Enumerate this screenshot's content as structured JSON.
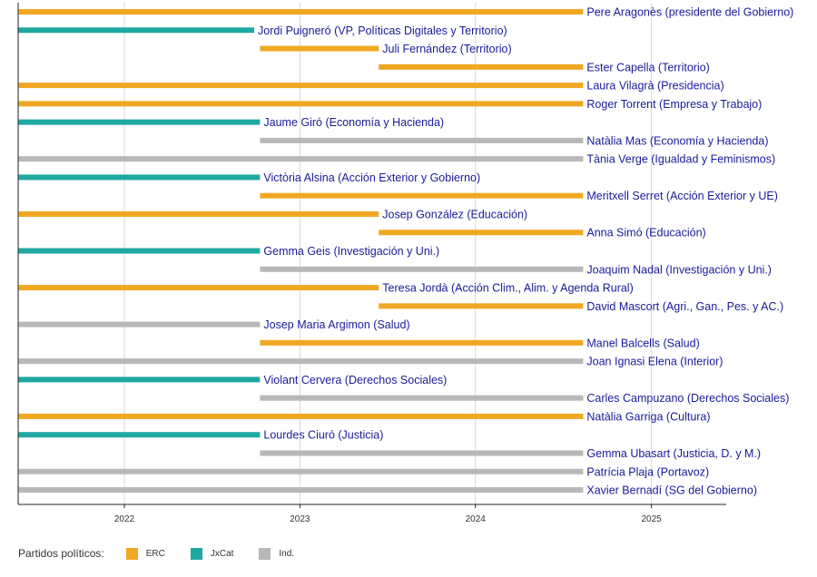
{
  "chart_data": {
    "type": "bar",
    "orientation": "horizontal-timeline",
    "x_ticks": [
      "2022",
      "2023",
      "2024",
      "2025"
    ],
    "xlim": [
      "2021-05-26",
      "2025-08-01"
    ],
    "grid": true,
    "legend_position": "bottom-left",
    "legend": {
      "title": "Partidos políticos:",
      "entries": [
        {
          "key": "ERC",
          "label": "ERC",
          "color": "#f0a824"
        },
        {
          "key": "JxCat",
          "label": "JxCat",
          "color": "#1fa8a1"
        },
        {
          "key": "Ind",
          "label": "Ind.",
          "color": "#b8b8b8"
        }
      ]
    },
    "bars": [
      {
        "label": "Pere Aragonès (presidente del Gobierno)",
        "party": "ERC",
        "start": "2021-05-26",
        "end": "2024-08-12"
      },
      {
        "label": "Jordi Puigneró (VP, Políticas Digitales y Territorio)",
        "party": "JxCat",
        "start": "2021-05-26",
        "end": "2022-09-28"
      },
      {
        "label": "Juli Fernández (Territorio)",
        "party": "ERC",
        "start": "2022-10-10",
        "end": "2023-06-14"
      },
      {
        "label": "Ester Capella (Territorio)",
        "party": "ERC",
        "start": "2023-06-14",
        "end": "2024-08-12"
      },
      {
        "label": "Laura Vilagrà (Presidencia)",
        "party": "ERC",
        "start": "2021-05-26",
        "end": "2024-08-12"
      },
      {
        "label": "Roger Torrent (Empresa y Trabajo)",
        "party": "ERC",
        "start": "2021-05-26",
        "end": "2024-08-12"
      },
      {
        "label": "Jaume Giró (Economía y Hacienda)",
        "party": "JxCat",
        "start": "2021-05-26",
        "end": "2022-10-10"
      },
      {
        "label": "Natàlia Mas (Economía y Hacienda)",
        "party": "Ind",
        "start": "2022-10-10",
        "end": "2024-08-12"
      },
      {
        "label": "Tània Verge (Igualdad y Feminismos)",
        "party": "Ind",
        "start": "2021-05-26",
        "end": "2024-08-12"
      },
      {
        "label": "Victòria Alsina (Acción Exterior y Gobierno)",
        "party": "JxCat",
        "start": "2021-05-26",
        "end": "2022-10-10"
      },
      {
        "label": "Meritxell Serret (Acción Exterior y UE)",
        "party": "ERC",
        "start": "2022-10-10",
        "end": "2024-08-12"
      },
      {
        "label": "Josep González (Educación)",
        "party": "ERC",
        "start": "2021-05-26",
        "end": "2023-06-14"
      },
      {
        "label": "Anna Simó (Educación)",
        "party": "ERC",
        "start": "2023-06-14",
        "end": "2024-08-12"
      },
      {
        "label": "Gemma Geis (Investigación y Uni.)",
        "party": "JxCat",
        "start": "2021-05-26",
        "end": "2022-10-10"
      },
      {
        "label": "Joaquim Nadal (Investigación y Uni.)",
        "party": "Ind",
        "start": "2022-10-10",
        "end": "2024-08-12"
      },
      {
        "label": "Teresa Jordà (Acción Clim., Alim. y Agenda Rural)",
        "party": "ERC",
        "start": "2021-05-26",
        "end": "2023-06-14"
      },
      {
        "label": "David Mascort (Agri., Gan., Pes. y AC.)",
        "party": "ERC",
        "start": "2023-06-14",
        "end": "2024-08-12"
      },
      {
        "label": "Josep Maria Argimon (Salud)",
        "party": "Ind",
        "start": "2021-05-26",
        "end": "2022-10-10"
      },
      {
        "label": "Manel Balcells (Salud)",
        "party": "ERC",
        "start": "2022-10-10",
        "end": "2024-08-12"
      },
      {
        "label": "Joan Ignasi Elena (Interior)",
        "party": "Ind",
        "start": "2021-05-26",
        "end": "2024-08-12"
      },
      {
        "label": "Violant Cervera (Derechos Sociales)",
        "party": "JxCat",
        "start": "2021-05-26",
        "end": "2022-10-10"
      },
      {
        "label": "Carles Campuzano (Derechos Sociales)",
        "party": "Ind",
        "start": "2022-10-10",
        "end": "2024-08-12"
      },
      {
        "label": "Natàlia Garriga (Cultura)",
        "party": "ERC",
        "start": "2021-05-26",
        "end": "2024-08-12"
      },
      {
        "label": "Lourdes Ciuró (Justicia)",
        "party": "JxCat",
        "start": "2021-05-26",
        "end": "2022-10-10"
      },
      {
        "label": "Gemma Ubasart (Justicia, D. y M.)",
        "party": "Ind",
        "start": "2022-10-10",
        "end": "2024-08-12"
      },
      {
        "label": "Patrícia Plaja (Portavoz)",
        "party": "Ind",
        "start": "2021-05-26",
        "end": "2024-08-12"
      },
      {
        "label": "Xavier Bernadí (SG del Gobierno)",
        "party": "Ind",
        "start": "2021-05-26",
        "end": "2024-08-12"
      }
    ]
  }
}
